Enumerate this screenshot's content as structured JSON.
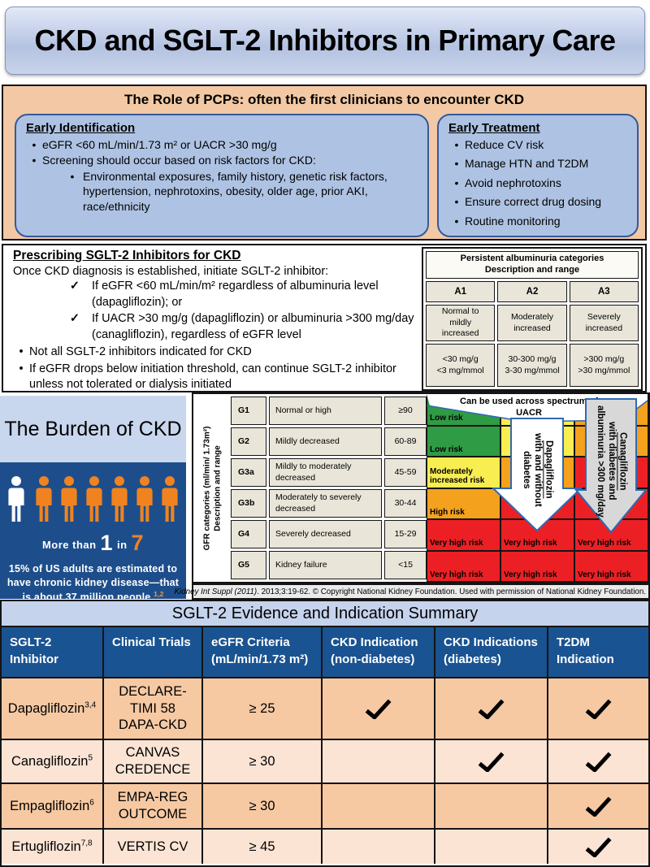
{
  "title": "CKD and SGLT-2 Inhibitors in Primary Care",
  "icons": {
    "check_glyph": "✓",
    "bullet_glyph": "•"
  },
  "colors": {
    "green": "#2f9b44",
    "yellow": "#f8ed51",
    "orange": "#f4a11d",
    "red": "#ec2024",
    "arrow_white": "#ffffff",
    "arrow_gray": "#d8d8d8",
    "arrow_border": "#2e6ab3",
    "person_orange": "#f0831f",
    "person_white": "#ffffff",
    "header_blue": "#1a5391",
    "peach": "#f2c9a4",
    "burden_blue": "#1d4e8b"
  },
  "pcp_section": {
    "title": "The Role of PCPs: often the first clinicians to encounter CKD",
    "early_identification": {
      "title": "Early Identification",
      "items": [
        {
          "level": 1,
          "marker": "bullet",
          "text": "eGFR <60 mL/min/1.73 m² or UACR >30 mg/g"
        },
        {
          "level": 1,
          "marker": "bullet",
          "text": "Screening should occur based on risk factors for CKD:"
        },
        {
          "level": 2,
          "marker": "bullet",
          "text": "Environmental exposures, family history, genetic risk factors, hypertension, nephrotoxins, obesity, older age, prior AKI, race/ethnicity"
        }
      ]
    },
    "early_treatment": {
      "title": "Early Treatment",
      "items": [
        {
          "level": 1,
          "marker": "bullet",
          "text": "Reduce CV risk"
        },
        {
          "level": 1,
          "marker": "bullet",
          "text": "Manage HTN and T2DM"
        },
        {
          "level": 1,
          "marker": "bullet",
          "text": "Avoid nephrotoxins"
        },
        {
          "level": 1,
          "marker": "bullet",
          "text": "Ensure correct drug dosing"
        },
        {
          "level": 1,
          "marker": "bullet",
          "text": "Routine monitoring"
        }
      ]
    }
  },
  "prescribing_section": {
    "title": "Prescribing SGLT-2 Inhibitors for CKD",
    "intro": "Once CKD diagnosis is established, initiate SGLT-2 inhibitor:",
    "items": [
      {
        "marker": "check",
        "text": "If eGFR <60 mL/min/m² regardless of albuminuria level (dapagliflozin); or"
      },
      {
        "marker": "check",
        "text": "If UACR >30 mg/g (dapagliflozin) or albuminuria >300 mg/day (canagliflozin), regardless of eGFR level"
      },
      {
        "marker": "bullet",
        "text": "Not all SGLT-2 inhibitors indicated for CKD"
      },
      {
        "marker": "bullet",
        "text": "If eGFR drops below initiation threshold, can continue SGLT-2 inhibitor unless not tolerated or dialysis initiated"
      }
    ]
  },
  "albuminuria_table": {
    "title_line1": "Persistent albuminuria categories",
    "title_line2": "Description and range",
    "columns": [
      "A1",
      "A2",
      "A3"
    ],
    "descriptions": [
      "Normal to\nmildly\nincreased",
      "Moderately\nincreased",
      "Severely\nincreased"
    ],
    "ranges": [
      "<30 mg/g\n<3 mg/mmol",
      "30-300 mg/g\n3-30 mg/mmol",
      ">300 mg/g\n>30 mg/mmol"
    ]
  },
  "burden": {
    "title": "The Burden of CKD",
    "ratio_prefix": "More than",
    "ratio_num": "1",
    "ratio_mid": "in",
    "ratio_denom": "7",
    "caption": "15% of US adults are estimated to have chronic kidney disease—that is about 37 million people.",
    "caption_sup": "1,2",
    "icons": [
      "white",
      "orange",
      "orange",
      "orange",
      "orange",
      "orange",
      "orange"
    ]
  },
  "gfr_table": {
    "side_label_line1": "GFR categories (ml/min/ 1.73m²)",
    "side_label_line2": "Description and range",
    "rows": [
      {
        "code": "G1",
        "desc": "Normal or high",
        "range": "≥90"
      },
      {
        "code": "G2",
        "desc": "Mildly decreased",
        "range": "60-89"
      },
      {
        "code": "G3a",
        "desc": "Mildly to moderately decreased",
        "range": "45-59"
      },
      {
        "code": "G3b",
        "desc": "Moderately to severely decreased",
        "range": "30-44"
      },
      {
        "code": "G4",
        "desc": "Severely decreased",
        "range": "15-29"
      },
      {
        "code": "G5",
        "desc": "Kidney failure",
        "range": "<15"
      }
    ]
  },
  "risk_map": {
    "banner_line1": "Can be used across spectrum of",
    "banner_line2": "UACR",
    "rows": [
      [
        {
          "c": "green",
          "t": "Low risk"
        },
        {
          "c": "yellow",
          "t": ""
        },
        {
          "c": "orange",
          "t": ""
        }
      ],
      [
        {
          "c": "green",
          "t": "Low risk"
        },
        {
          "c": "yellow",
          "t": ""
        },
        {
          "c": "orange",
          "t": ""
        }
      ],
      [
        {
          "c": "yellow",
          "t": "Moderately increased risk"
        },
        {
          "c": "orange",
          "t": ""
        },
        {
          "c": "red",
          "t": ""
        }
      ],
      [
        {
          "c": "orange",
          "t": "High risk"
        },
        {
          "c": "red",
          "t": ""
        },
        {
          "c": "red",
          "t": ""
        }
      ],
      [
        {
          "c": "red",
          "t": "Very high risk"
        },
        {
          "c": "red",
          "t": "Very high risk"
        },
        {
          "c": "red",
          "t": "Very high risk"
        }
      ],
      [
        {
          "c": "red",
          "t": "Very high risk"
        },
        {
          "c": "red",
          "t": "Very high risk"
        },
        {
          "c": "red",
          "t": "Very high risk"
        }
      ]
    ],
    "arrows": [
      {
        "lines": [
          "Dapagliflozin",
          "with and without",
          "diabetes"
        ]
      },
      {
        "lines": [
          "Canagliflozin",
          "with diabetes and",
          "albuminuria >300 mg/day"
        ]
      }
    ]
  },
  "citation_italic": "Kidney Int Suppl (2011)",
  "citation_rest": ". 2013;3:19-62. © Copyright National Kidney Foundation. Used with permission of National Kidney Foundation.",
  "summary_table": {
    "title": "SGLT-2 Evidence and Indication Summary",
    "columns": [
      "SGLT-2\nInhibitor",
      "Clinical Trials",
      "eGFR Criteria\n(mL/min/1.73 m²)",
      "CKD Indication\n(non-diabetes)",
      "CKD Indications\n(diabetes)",
      "T2DM\nIndication"
    ],
    "rows": [
      {
        "drug": "Dapagliflozin",
        "sup": "3,4",
        "trials": "DECLARE-\nTIMI 58\nDAPA-CKD",
        "egfr": "≥ 25",
        "ckd_nondiab": true,
        "ckd_diab": true,
        "t2dm": true
      },
      {
        "drug": "Canagliflozin",
        "sup": "5",
        "trials": "CANVAS\nCREDENCE",
        "egfr": "≥ 30",
        "ckd_nondiab": false,
        "ckd_diab": true,
        "t2dm": true
      },
      {
        "drug": "Empagliflozin",
        "sup": "6",
        "trials": "EMPA-REG\nOUTCOME",
        "egfr": "≥ 30",
        "ckd_nondiab": false,
        "ckd_diab": false,
        "t2dm": true
      },
      {
        "drug": "Ertugliflozin",
        "sup": "7,8",
        "trials": "VERTIS CV",
        "egfr": "≥ 45",
        "ckd_nondiab": false,
        "ckd_diab": false,
        "t2dm": true
      }
    ]
  }
}
